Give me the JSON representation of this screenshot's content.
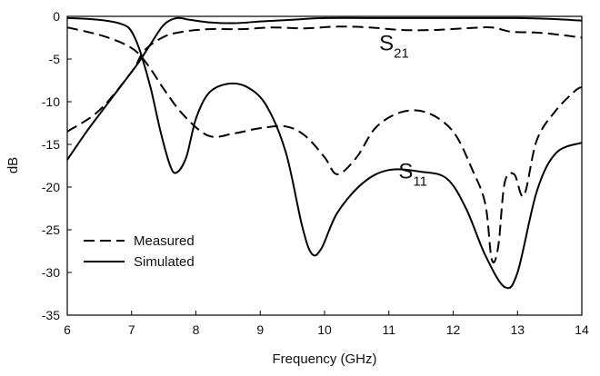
{
  "chart_data": {
    "type": "line",
    "title": "",
    "xlabel": "Frequency (GHz)",
    "ylabel": "dB",
    "xlim": [
      6,
      14
    ],
    "ylim": [
      -35,
      0
    ],
    "xticks": [
      "6",
      "7",
      "8",
      "9",
      "10",
      "11",
      "12",
      "13",
      "14"
    ],
    "yticks": [
      "0",
      "-5",
      "-10",
      "-15",
      "-20",
      "-25",
      "-30",
      "-35"
    ],
    "grid": false,
    "legend_position": "lower-left",
    "legend": [
      "Measured",
      "Simulated"
    ],
    "annotations": [
      {
        "main": "S",
        "sub": "21",
        "x": 10.85,
        "y": -4.0
      },
      {
        "main": "S",
        "sub": "11",
        "x": 11.15,
        "y": -19.0
      }
    ],
    "series": [
      {
        "name": "Measured",
        "parameter": "S21",
        "style": "dashed",
        "x": [
          6.0,
          6.5,
          7.0,
          7.2,
          7.5,
          7.8,
          8.2,
          8.7,
          9.2,
          9.7,
          10.2,
          10.7,
          11.2,
          11.7,
          12.2,
          12.6,
          12.9,
          13.3,
          13.7,
          14.0
        ],
        "y": [
          -13.5,
          -11.0,
          -6.5,
          -4.0,
          -2.4,
          -1.8,
          -1.5,
          -1.5,
          -1.3,
          -1.4,
          -1.2,
          -1.3,
          -1.6,
          -1.6,
          -1.4,
          -1.3,
          -1.8,
          -1.9,
          -2.2,
          -2.5
        ]
      },
      {
        "name": "Measured",
        "parameter": "S11",
        "style": "dashed",
        "x": [
          6.0,
          6.3,
          6.6,
          6.9,
          7.1,
          7.3,
          7.5,
          7.8,
          8.2,
          8.6,
          9.0,
          9.4,
          9.7,
          10.0,
          10.2,
          10.5,
          10.8,
          11.2,
          11.6,
          12.0,
          12.3,
          12.5,
          12.6,
          12.7,
          12.8,
          12.95,
          13.1,
          13.3,
          13.6,
          13.9,
          14.0
        ],
        "y": [
          -1.3,
          -1.8,
          -2.4,
          -3.3,
          -4.3,
          -6.2,
          -8.5,
          -11.5,
          -14.0,
          -13.7,
          -13.1,
          -12.9,
          -14.0,
          -16.5,
          -18.5,
          -16.5,
          -13.0,
          -11.2,
          -11.3,
          -13.5,
          -18.0,
          -22.0,
          -28.5,
          -27.0,
          -19.5,
          -18.5,
          -21.0,
          -14.5,
          -11.0,
          -8.7,
          -8.3
        ]
      },
      {
        "name": "Simulated",
        "parameter": "S21",
        "style": "solid",
        "x": [
          6.0,
          6.3,
          6.6,
          6.9,
          7.1,
          7.3,
          7.5,
          7.7,
          7.9,
          8.2,
          8.6,
          9.0,
          9.5,
          10.0,
          11.0,
          12.0,
          13.0,
          13.5,
          14.0
        ],
        "y": [
          -16.8,
          -13.5,
          -10.5,
          -7.5,
          -5.5,
          -3.2,
          -1.0,
          -0.2,
          -0.4,
          -0.7,
          -0.8,
          -0.6,
          -0.4,
          -0.2,
          -0.2,
          -0.2,
          -0.2,
          -0.3,
          -0.5
        ]
      },
      {
        "name": "Simulated",
        "parameter": "S11",
        "style": "solid",
        "x": [
          6.0,
          6.3,
          6.6,
          6.8,
          6.95,
          7.05,
          7.15,
          7.3,
          7.45,
          7.6,
          7.7,
          7.85,
          8.0,
          8.2,
          8.5,
          8.8,
          9.1,
          9.4,
          9.65,
          9.8,
          9.95,
          10.2,
          10.6,
          11.0,
          11.5,
          11.9,
          12.2,
          12.5,
          12.8,
          13.0,
          13.3,
          13.6,
          14.0
        ],
        "y": [
          -0.2,
          -0.3,
          -0.5,
          -0.8,
          -1.3,
          -2.5,
          -4.5,
          -8.5,
          -13.5,
          -17.5,
          -18.3,
          -16.5,
          -12.0,
          -9.0,
          -7.9,
          -8.3,
          -10.5,
          -16.0,
          -24.5,
          -27.8,
          -27.2,
          -23.0,
          -19.5,
          -18.0,
          -18.2,
          -19.0,
          -22.5,
          -28.0,
          -31.7,
          -30.0,
          -20.5,
          -16.0,
          -14.8
        ]
      }
    ]
  }
}
